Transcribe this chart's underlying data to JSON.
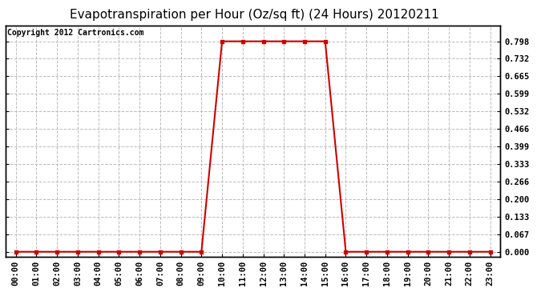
{
  "title": "Evapotranspiration per Hour (Oz/sq ft) (24 Hours) 20120211",
  "copyright_text": "Copyright 2012 Cartronics.com",
  "hours": [
    "00:00",
    "01:00",
    "02:00",
    "03:00",
    "04:00",
    "05:00",
    "06:00",
    "07:00",
    "08:00",
    "09:00",
    "10:00",
    "11:00",
    "12:00",
    "13:00",
    "14:00",
    "15:00",
    "16:00",
    "17:00",
    "18:00",
    "19:00",
    "20:00",
    "21:00",
    "22:00",
    "23:00"
  ],
  "values": [
    0.0,
    0.0,
    0.0,
    0.0,
    0.0,
    0.0,
    0.0,
    0.0,
    0.0,
    0.0,
    0.798,
    0.798,
    0.798,
    0.798,
    0.798,
    0.798,
    0.0,
    0.0,
    0.0,
    0.0,
    0.0,
    0.0,
    0.0,
    0.0
  ],
  "line_color": "#cc0000",
  "marker": "s",
  "marker_size": 3,
  "background_color": "#ffffff",
  "plot_bg_color": "#ffffff",
  "grid_color": "#bbbbbb",
  "grid_style": "--",
  "ylim": [
    -0.018,
    0.858
  ],
  "yticks": [
    0.0,
    0.067,
    0.133,
    0.2,
    0.266,
    0.333,
    0.399,
    0.466,
    0.532,
    0.599,
    0.665,
    0.732,
    0.798
  ],
  "title_fontsize": 11,
  "copyright_fontsize": 7,
  "tick_fontsize": 7.5,
  "border_color": "#000000",
  "linewidth": 1.5
}
